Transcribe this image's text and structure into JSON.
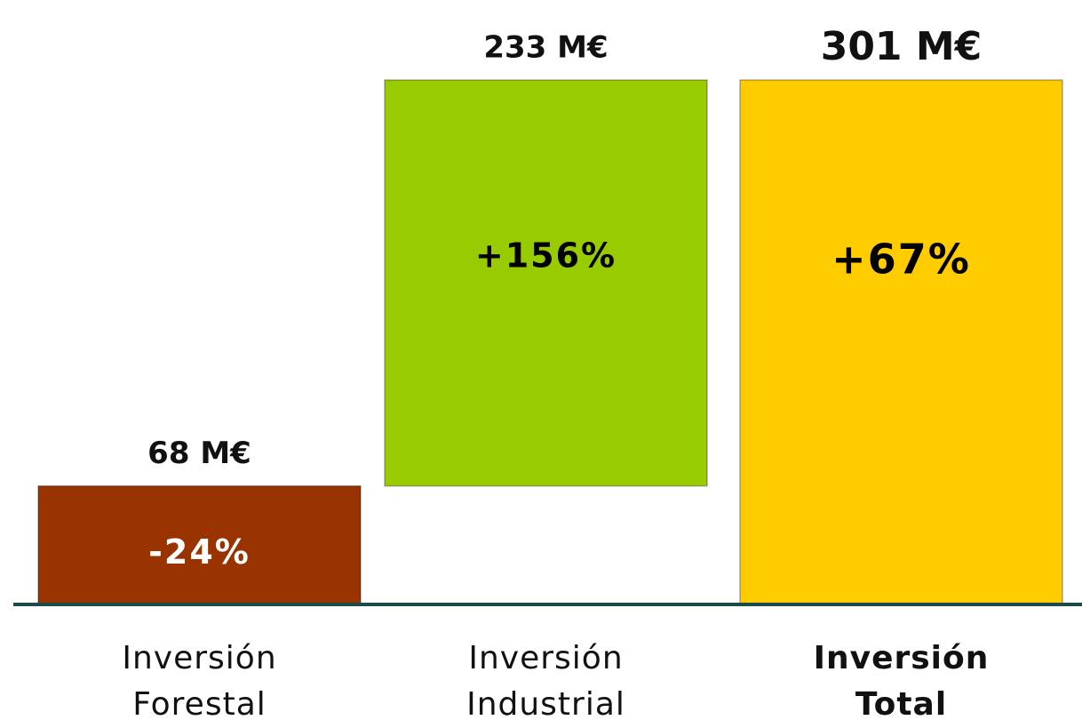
{
  "chart_data": {
    "type": "waterfall",
    "categories": [
      "Inversión Forestal",
      "Inversión Industrial",
      "Inversión Total"
    ],
    "values": [
      68,
      233,
      301
    ],
    "value_labels": [
      "68 M€",
      "233 M€",
      "301 M€"
    ],
    "totals": [
      false,
      false,
      true
    ],
    "colors": [
      "#993300",
      "#99cc00",
      "#ffcc00"
    ],
    "annotations": [
      "-24%",
      "+156%",
      "+67%"
    ],
    "annotation_colors": [
      "#ffffff",
      "#000000",
      "#000000"
    ]
  }
}
